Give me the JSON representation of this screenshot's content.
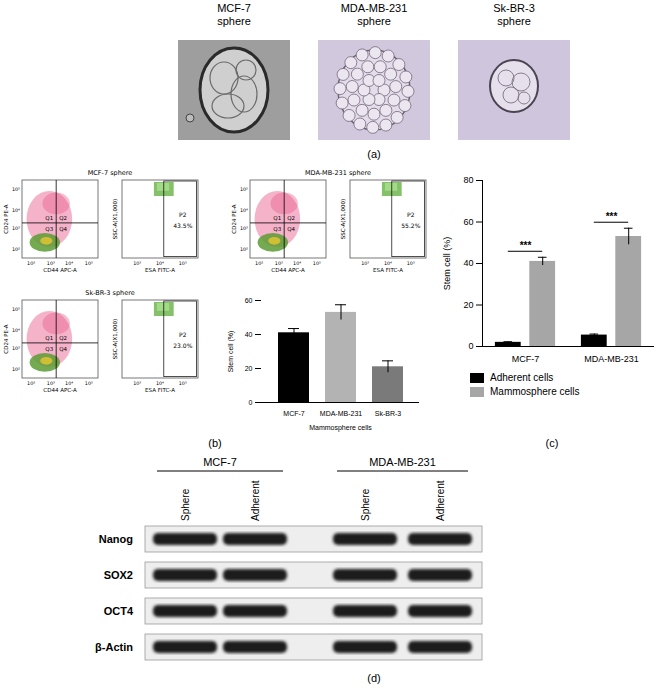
{
  "panel_labels": [
    "(a)",
    "(b)",
    "(c)",
    "(d)"
  ],
  "panel_a": {
    "images": [
      {
        "title": [
          "MCF-7",
          "sphere"
        ]
      },
      {
        "title": [
          "MDA-MB-231",
          "sphere"
        ]
      },
      {
        "title": [
          "Sk-BR-3",
          "sphere"
        ]
      }
    ]
  },
  "panel_b_flow": [
    {
      "title": "MCF-7 sphere",
      "dot_plot": {
        "x_label": "CD44 APC-A",
        "y_label": "CD24 PE-A",
        "quadrants": [
          "Q1",
          "Q2",
          "Q3",
          "Q4"
        ],
        "xticks": [
          "10²",
          "10³",
          "10⁴",
          "10⁵"
        ],
        "yticks": [
          "10²",
          "10³",
          "10⁴",
          "10⁵"
        ]
      },
      "gate_plot": {
        "x_label": "ESA FITC-A",
        "y_label": "SSC-A(X1,000)",
        "xticks": [
          "10³",
          "10⁴",
          "10⁵"
        ],
        "gate": "P2",
        "percent": "43.5%"
      }
    },
    {
      "title": "MDA-MB-231 sphere",
      "dot_plot": {
        "x_label": "CD44 APC-A",
        "y_label": "CD24 PE-A",
        "quadrants": [
          "Q1",
          "Q2",
          "Q3",
          "Q4"
        ],
        "xticks": [
          "10²",
          "10³",
          "10⁴",
          "10⁵"
        ],
        "yticks": [
          "10²",
          "10³",
          "10⁴",
          "10⁵"
        ]
      },
      "gate_plot": {
        "x_label": "ESA FITC-A",
        "y_label": "SSC-A(X1,000)",
        "xticks": [
          "10³",
          "10⁴",
          "10⁵"
        ],
        "gate": "P2",
        "percent": "55.2%"
      }
    },
    {
      "title": "Sk-BR-3 sphere",
      "dot_plot": {
        "x_label": "CD44 APC-A",
        "y_label": "CD24 PE-A",
        "quadrants": [
          "Q1",
          "Q2",
          "Q3",
          "Q4"
        ],
        "xticks": [
          "10²",
          "10³",
          "10⁴",
          "10⁵"
        ],
        "yticks": [
          "10²",
          "10³",
          "10⁴",
          "10⁵"
        ]
      },
      "gate_plot": {
        "x_label": "ESA FITC-A",
        "y_label": "SSC-A(X1,000)",
        "xticks": [
          "10³",
          "10⁴",
          "10⁵"
        ],
        "gate": "P2",
        "percent": "23.0%"
      }
    }
  ],
  "chart_data": [
    {
      "type": "bar",
      "categories": [
        "MCF-7",
        "MDA-MB-231",
        "Sk-BR-3"
      ],
      "values": [
        41,
        53,
        21
      ],
      "errors": [
        2.5,
        4.5,
        3.5
      ],
      "colors": [
        "#000000",
        "#b3b3b3",
        "#7a7a7a"
      ],
      "ylim": [
        0,
        60
      ],
      "yticks": [
        0,
        20,
        40,
        60
      ],
      "y_label": "Stem cell (%)",
      "x_label": "Mammosphere cells"
    },
    {
      "type": "bar",
      "categories": [
        "MCF-7",
        "MDA-MB-231"
      ],
      "series": [
        {
          "name": "Adherent cells",
          "color": "#000000",
          "values": [
            2,
            5.5
          ],
          "errors": [
            0.3,
            0.5
          ]
        },
        {
          "name": "Mammosphere cells",
          "color": "#a6a6a6",
          "values": [
            41,
            53
          ],
          "errors": [
            2,
            4
          ]
        }
      ],
      "ylim": [
        0,
        80
      ],
      "yticks": [
        0,
        20,
        40,
        60,
        80
      ],
      "y_label": "Stem cell (%)",
      "annotations": [
        {
          "category": "MCF-7",
          "text": "***"
        },
        {
          "category": "MDA-MB-231",
          "text": "***"
        }
      ],
      "legend": "bottom"
    }
  ],
  "panel_d": {
    "groups": [
      {
        "name": "MCF-7",
        "lanes": [
          "Sphere",
          "Adherent"
        ]
      },
      {
        "name": "MDA-MB-231",
        "lanes": [
          "Sphere",
          "Adherent"
        ]
      }
    ],
    "rows": [
      "Nanog",
      "SOX2",
      "OCT4",
      "β-Actin"
    ]
  }
}
